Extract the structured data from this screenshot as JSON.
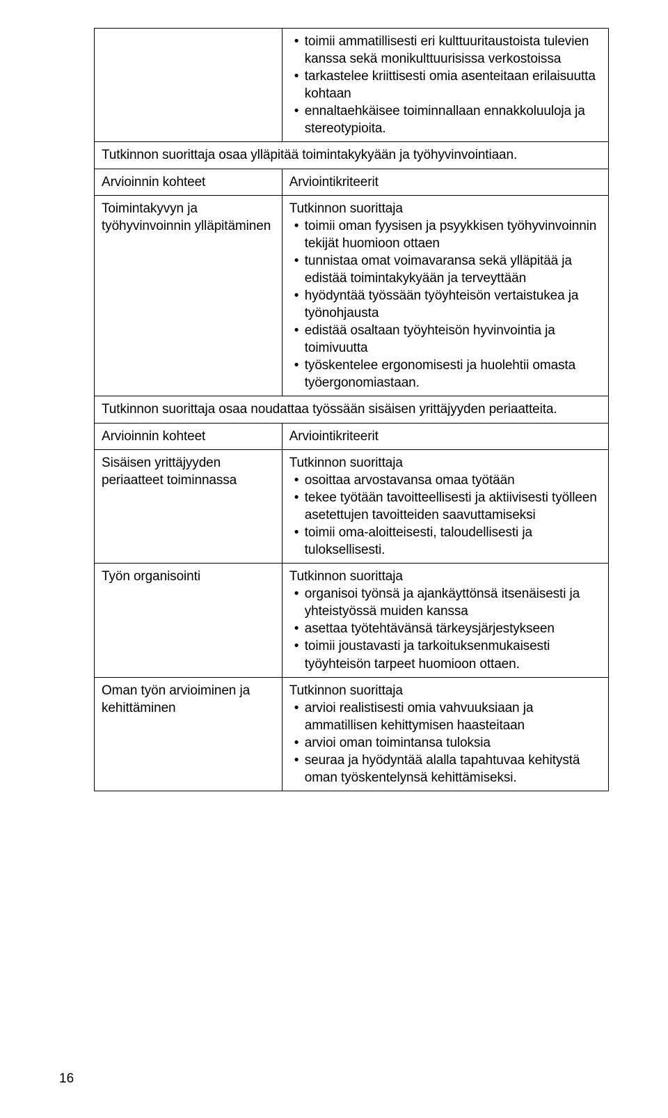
{
  "page_number": "16",
  "table": {
    "row1": {
      "left": "",
      "right_bullets": [
        "toimii ammatillisesti eri kulttuuritaustoista tulevien kanssa sekä monikulttuurisissa verkostoissa",
        "tarkastelee kriittisesti omia asenteitaan erilaisuutta kohtaan",
        "ennaltaehkäisee toiminnallaan ennakkoluuloja ja stereotypioita."
      ]
    },
    "section1_header": "Tutkinnon suorittaja osaa ylläpitää toimintakykyään ja työhyvinvointiaan.",
    "cols_header1": {
      "left": "Arvioinnin kohteet",
      "right": "Arviointikriteerit"
    },
    "row2": {
      "left": "Toimintakyvyn ja työhyvinvoinnin ylläpitäminen",
      "right_intro": "Tutkinnon suorittaja",
      "right_bullets": [
        "toimii oman fyysisen ja psyykkisen työhyvinvoinnin tekijät huomioon ottaen",
        "tunnistaa omat voimavaransa sekä ylläpitää ja edistää toimintakykyään ja terveyttään",
        "hyödyntää työssään työyhteisön vertaistukea ja työnohjausta",
        "edistää osaltaan työyhteisön hyvinvointia ja toimivuutta",
        "työskentelee ergonomisesti ja huolehtii omasta työergonomiastaan."
      ]
    },
    "section2_header": "Tutkinnon suorittaja osaa noudattaa työssään sisäisen yrittäjyyden periaatteita.",
    "cols_header2": {
      "left": "Arvioinnin kohteet",
      "right": "Arviointikriteerit"
    },
    "row3": {
      "left": "Sisäisen yrittäjyyden periaatteet toiminnassa",
      "right_intro": "Tutkinnon suorittaja",
      "right_bullets": [
        "osoittaa arvostavansa omaa työtään",
        "tekee työtään tavoitteellisesti ja aktiivisesti työlleen asetettujen tavoitteiden saavuttamiseksi",
        "toimii oma-aloitteisesti, taloudellisesti ja tuloksellisesti."
      ]
    },
    "row4": {
      "left": "Työn organisointi",
      "right_intro": "Tutkinnon suorittaja",
      "right_bullets": [
        "organisoi työnsä ja ajankäyttönsä itsenäisesti ja yhteistyössä muiden kanssa",
        "asettaa työtehtävänsä tärkeysjärjestykseen",
        "toimii joustavasti ja tarkoituksenmukaisesti työyhteisön tarpeet huomioon ottaen."
      ]
    },
    "row5": {
      "left": "Oman työn arvioiminen ja kehittäminen",
      "right_intro": "Tutkinnon suorittaja",
      "right_bullets": [
        "arvioi realistisesti omia vahvuuksiaan ja ammatillisen kehittymisen haasteitaan",
        "arvioi oman toimintansa tuloksia",
        "seuraa ja hyödyntää alalla tapahtuvaa kehitystä oman työskentelynsä kehittämiseksi."
      ]
    }
  }
}
